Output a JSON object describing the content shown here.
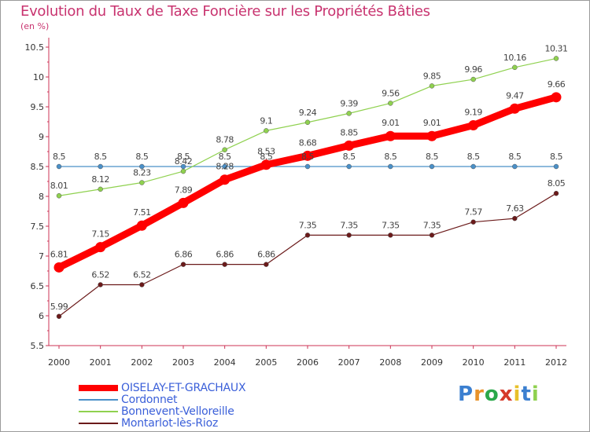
{
  "header": {
    "title": "Evolution du Taux de Taxe Foncière sur les Propriétés Bâties",
    "unit": "(en %)"
  },
  "chart_data": {
    "type": "line",
    "title": "Evolution du Taux de Taxe Foncière sur les Propriétés Bâties",
    "ylabel": "(en %)",
    "xlabel": "",
    "categories": [
      "2000",
      "2001",
      "2002",
      "2003",
      "2004",
      "2005",
      "2006",
      "2007",
      "2008",
      "2009",
      "2010",
      "2011",
      "2012"
    ],
    "ylim": [
      5.5,
      10.5
    ],
    "yticks": [
      "5.5",
      "6",
      "6.5",
      "7",
      "7.5",
      "8",
      "8.5",
      "9",
      "9.5",
      "10",
      "10.5"
    ],
    "series": [
      {
        "name": "OISELAY-ET-GRACHAUX",
        "color": "#ff0000",
        "values": [
          6.81,
          7.15,
          7.51,
          7.89,
          8.28,
          8.53,
          8.68,
          8.85,
          9.01,
          9.01,
          9.19,
          9.47,
          9.66
        ],
        "labels": [
          "6.81",
          "7.15",
          "7.51",
          "7.89",
          "8.28",
          "8.53",
          "8.68",
          "8.85",
          "9.01",
          "9.01",
          "9.19",
          "9.47",
          "9.66"
        ]
      },
      {
        "name": "Cordonnet",
        "color": "#4a90c8",
        "values": [
          8.5,
          8.5,
          8.5,
          8.5,
          8.5,
          8.5,
          8.5,
          8.5,
          8.5,
          8.5,
          8.5,
          8.5,
          8.5
        ],
        "labels": [
          "8.5",
          "8.5",
          "8.5",
          "8.5",
          "8.5",
          "8.5",
          "8.5",
          "8.5",
          "8.5",
          "8.5",
          "8.5",
          "8.5",
          "8.5"
        ]
      },
      {
        "name": "Bonnevent-Velloreille",
        "color": "#8fd14f",
        "values": [
          8.01,
          8.12,
          8.23,
          8.42,
          8.78,
          9.1,
          9.24,
          9.39,
          9.56,
          9.85,
          9.96,
          10.16,
          10.31
        ],
        "labels": [
          "8.01",
          "8.12",
          "8.23",
          "8.42",
          "8.78",
          "9.1",
          "9.24",
          "9.39",
          "9.56",
          "9.85",
          "9.96",
          "10.16",
          "10.31"
        ]
      },
      {
        "name": "Montarlot-lès-Rioz",
        "color": "#6b1a1a",
        "values": [
          5.99,
          6.52,
          6.52,
          6.86,
          6.86,
          6.86,
          7.35,
          7.35,
          7.35,
          7.35,
          7.57,
          7.63,
          8.05
        ],
        "labels": [
          "5.99",
          "6.52",
          "6.52",
          "6.86",
          "6.86",
          "6.86",
          "7.35",
          "7.35",
          "7.35",
          "7.35",
          "7.57",
          "7.63",
          "8.05"
        ]
      }
    ],
    "grid": false,
    "legend_position": "bottom-left"
  },
  "logo": {
    "letters": [
      "P",
      "r",
      "o",
      "x",
      "i",
      "t",
      "i"
    ],
    "colors": [
      "#3b7fd0",
      "#e8922a",
      "#2aa84a",
      "#d63a2a",
      "#e8c02a",
      "#3b7fd0",
      "#8fd14f"
    ]
  }
}
